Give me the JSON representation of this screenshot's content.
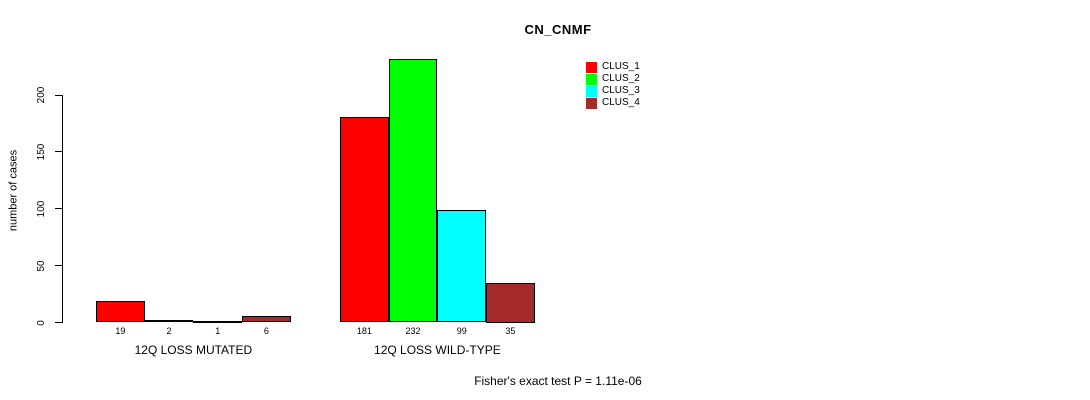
{
  "chart_data": {
    "type": "bar",
    "title": "CN_CNMF",
    "ylabel": "number of cases",
    "xlabel": "",
    "ylim": [
      0,
      232
    ],
    "axis_ticks": [
      0,
      50,
      100,
      150,
      200
    ],
    "grid": false,
    "legend_position": "top-right",
    "series_names": [
      "CLUS_1",
      "CLUS_2",
      "CLUS_3",
      "CLUS_4"
    ],
    "colors": [
      "#FF0000",
      "#00FF00",
      "#00FFFF",
      "#A52A2A"
    ],
    "groups": [
      {
        "label": "12Q LOSS MUTATED",
        "values": [
          19,
          2,
          1,
          6
        ]
      },
      {
        "label": "12Q LOSS WILD-TYPE",
        "values": [
          181,
          232,
          99,
          35
        ]
      }
    ],
    "annotation": "Fisher's exact test P = 1.11e-06"
  }
}
